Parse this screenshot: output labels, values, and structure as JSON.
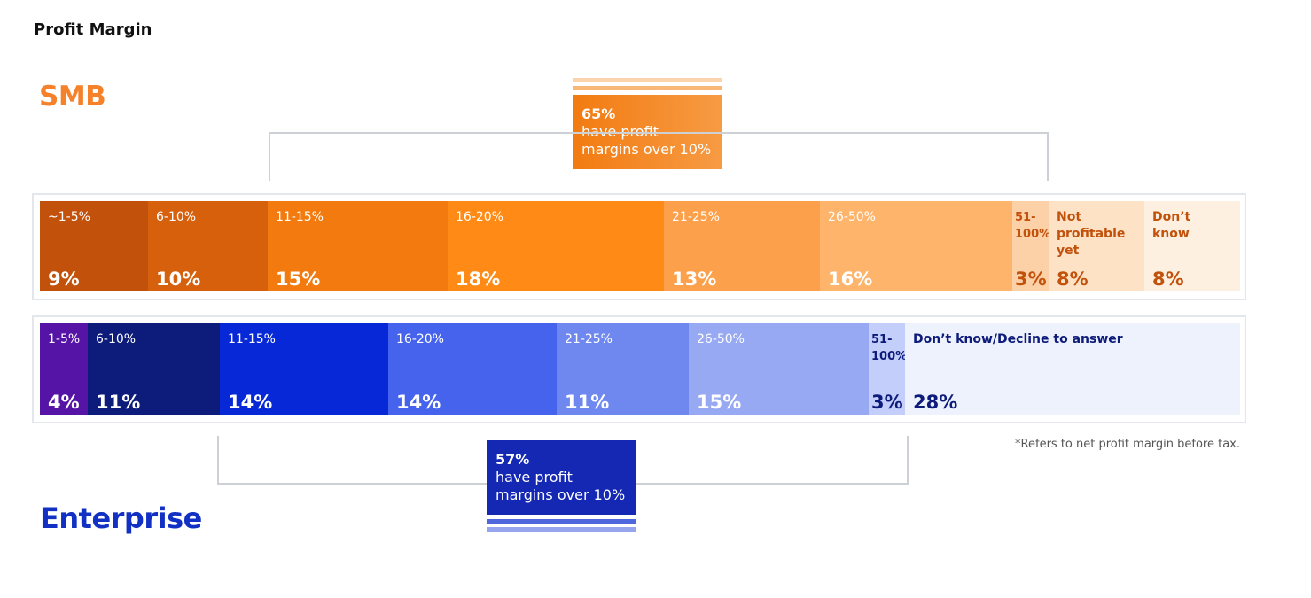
{
  "page_title": "Profit Margin",
  "smb": {
    "label": "SMB",
    "callout_value": "65%",
    "callout_text": "have profit\nmargins over 10%",
    "colors": {
      "label": "#f5822a",
      "callout": "#f27b11",
      "stripes": [
        "#fbd3ad",
        "#f9b777"
      ]
    }
  },
  "enterprise": {
    "label": "Enterprise",
    "callout_value": "57%",
    "callout_text": "have profit\nmargins over 10%",
    "colors": {
      "label": "#1230c3",
      "callout": "#1428b4",
      "stripes": [
        "#4f67dd",
        "#95a6ee"
      ]
    }
  },
  "footnote": "*Refers to net profit margin before tax.",
  "chart_data": [
    {
      "type": "bar",
      "orientation": "horizontal-stacked",
      "series_group": "SMB",
      "categories": [
        "~1-5%",
        "6-10%",
        "11-15%",
        "16-20%",
        "21-25%",
        "26-50%",
        "51-\n100%",
        "Not\nprofitable\nyet",
        "Don’t\nknow"
      ],
      "values": [
        9,
        10,
        15,
        18,
        13,
        16,
        3,
        8,
        8
      ],
      "value_labels": [
        "9%",
        "10%",
        "15%",
        "18%",
        "13%",
        "16%",
        "3%",
        "8%",
        "8%"
      ],
      "colors": [
        "#c2520b",
        "#d7600d",
        "#f27a0e",
        "#ff8a15",
        "#fca04b",
        "#feb46b",
        "#fdd1a7",
        "#fde2c6",
        "#fef0e1"
      ],
      "label_colors": [
        "#ffffff",
        "#ffffff",
        "#ffffff",
        "#ffffff",
        "#ffffff",
        "#ffffff",
        "#c2520b",
        "#c2520b",
        "#c2520b"
      ],
      "segment_units": [
        9,
        10,
        15,
        18,
        13,
        16,
        3,
        8,
        8
      ]
    },
    {
      "type": "bar",
      "orientation": "horizontal-stacked",
      "series_group": "Enterprise",
      "categories": [
        "1-5%",
        "6-10%",
        "11-15%",
        "16-20%",
        "21-25%",
        "26-50%",
        "51-\n100%",
        "Don’t know/Decline to answer"
      ],
      "values": [
        4,
        11,
        14,
        14,
        11,
        15,
        3,
        28
      ],
      "value_labels": [
        "4%",
        "11%",
        "14%",
        "14%",
        "11%",
        "15%",
        "3%",
        "28%"
      ],
      "colors": [
        "#5514a6",
        "#0d1b7a",
        "#0628d6",
        "#4563ec",
        "#6f88ef",
        "#97a9f3",
        "#c4cefa",
        "#eef2fd"
      ],
      "label_colors": [
        "#ffffff",
        "#ffffff",
        "#ffffff",
        "#ffffff",
        "#ffffff",
        "#ffffff",
        "#0d1b7a",
        "#0d1b7a"
      ],
      "segment_units": [
        4,
        11,
        14,
        14,
        11,
        15,
        3,
        28
      ]
    }
  ]
}
